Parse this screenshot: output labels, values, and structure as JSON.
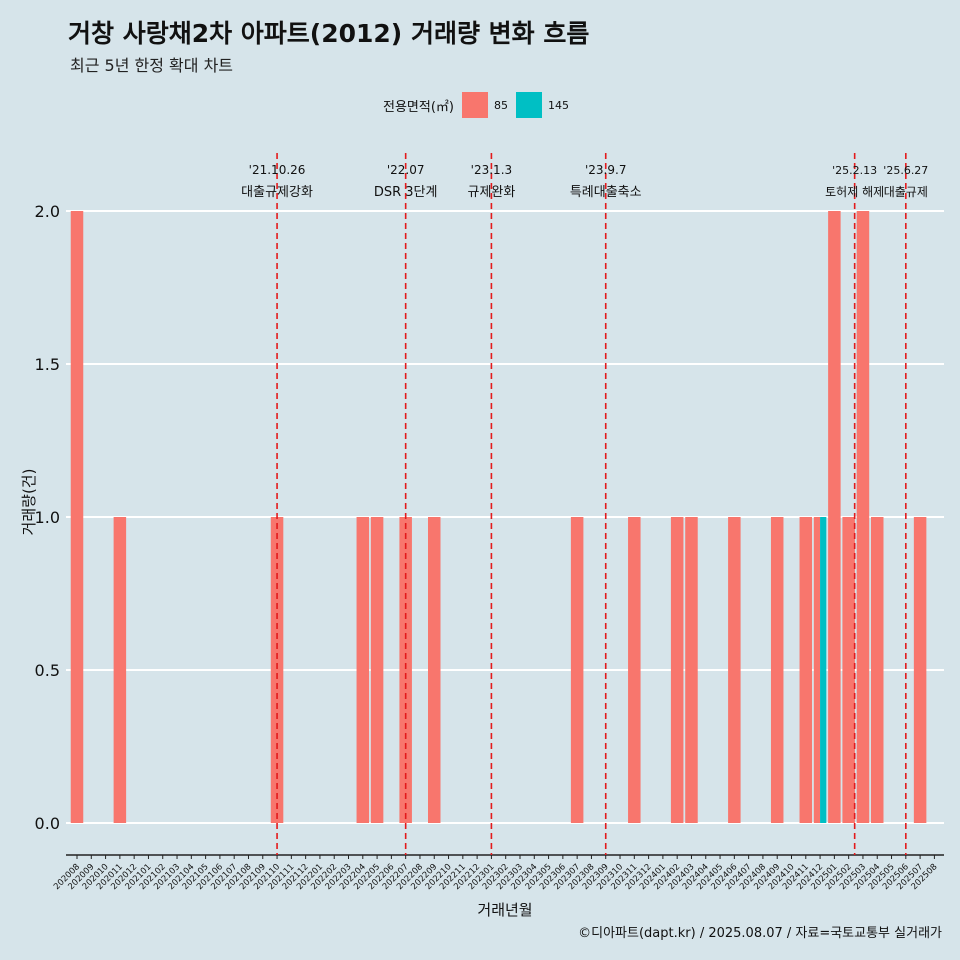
{
  "title": "거창 사랑채2차 아파트(2012) 거래량 변화 흐름",
  "subtitle": "최근 5년 한정 확대 차트",
  "caption": "©디아파트(dapt.kr) / 2025.08.07 / 자료=국토교통부 실거래가",
  "legend": {
    "title": "전용면적(㎡)",
    "items": [
      {
        "label": "85",
        "color": "#f8766d"
      },
      {
        "label": "145",
        "color": "#00bfc4"
      }
    ]
  },
  "chart_data": {
    "type": "bar",
    "xlabel": "거래년월",
    "ylabel": "거래량(건)",
    "ylim": [
      0,
      2
    ],
    "yticks": [
      "0.0",
      "0.5",
      "1.0",
      "1.5",
      "2.0"
    ],
    "grid": true,
    "legend_position": "top",
    "categories": [
      "202008",
      "202009",
      "202010",
      "202011",
      "202012",
      "202101",
      "202102",
      "202103",
      "202104",
      "202105",
      "202106",
      "202107",
      "202108",
      "202109",
      "202110",
      "202111",
      "202112",
      "202201",
      "202202",
      "202203",
      "202204",
      "202205",
      "202206",
      "202207",
      "202208",
      "202209",
      "202210",
      "202211",
      "202212",
      "202301",
      "202302",
      "202303",
      "202304",
      "202305",
      "202306",
      "202307",
      "202308",
      "202309",
      "202310",
      "202311",
      "202312",
      "202401",
      "202402",
      "202403",
      "202404",
      "202405",
      "202406",
      "202407",
      "202408",
      "202409",
      "202410",
      "202411",
      "202412",
      "202501",
      "202502",
      "202503",
      "202504",
      "202505",
      "202506",
      "202507",
      "202508"
    ],
    "series": [
      {
        "name": "85",
        "color": "#f8766d",
        "values": [
          2,
          0,
          0,
          1,
          0,
          0,
          0,
          0,
          0,
          0,
          0,
          0,
          0,
          0,
          1,
          0,
          0,
          0,
          0,
          0,
          1,
          1,
          0,
          1,
          0,
          1,
          0,
          0,
          0,
          0,
          0,
          0,
          0,
          0,
          0,
          1,
          0,
          0,
          0,
          1,
          0,
          0,
          1,
          1,
          0,
          0,
          1,
          0,
          0,
          1,
          0,
          1,
          1,
          2,
          1,
          2,
          1,
          0,
          0,
          1,
          0
        ]
      },
      {
        "name": "145",
        "color": "#00bfc4",
        "values": [
          0,
          0,
          0,
          0,
          0,
          0,
          0,
          0,
          0,
          0,
          0,
          0,
          0,
          0,
          0,
          0,
          0,
          0,
          0,
          0,
          0,
          0,
          0,
          0,
          0,
          0,
          0,
          0,
          0,
          0,
          0,
          0,
          0,
          0,
          0,
          0,
          0,
          0,
          0,
          0,
          0,
          0,
          0,
          0,
          0,
          0,
          0,
          0,
          0,
          0,
          0,
          0,
          1,
          0,
          0,
          0,
          0,
          0,
          0,
          0,
          0
        ]
      }
    ],
    "annotations": [
      {
        "x": "202110",
        "date": "'21.10.26",
        "label": "대출규제강화"
      },
      {
        "x": "202207",
        "date": "'22.07",
        "label": "DSR 3단계"
      },
      {
        "x": "202301",
        "date": "'23.1.3",
        "label": "규제완화"
      },
      {
        "x": "202309",
        "date": "'23.9.7",
        "label": "특례대출축소"
      },
      {
        "x": "202502",
        "date": "'25.2.13",
        "label": "토허제 해제"
      },
      {
        "x": "202506",
        "date": "'25.6.27",
        "label": "대출규제"
      }
    ]
  }
}
